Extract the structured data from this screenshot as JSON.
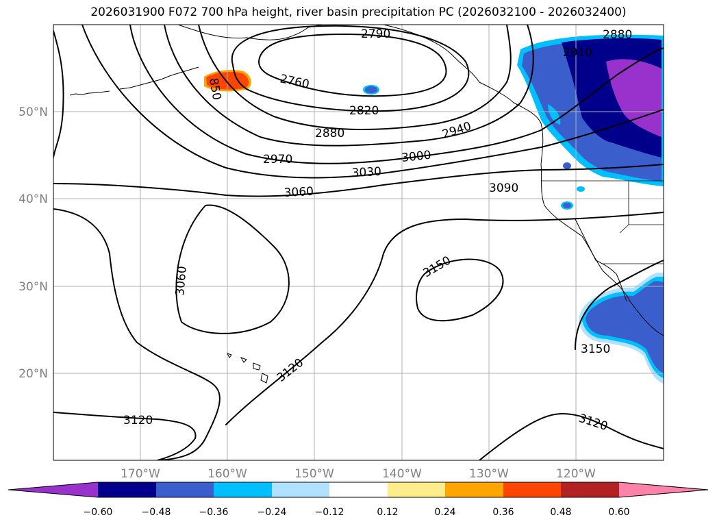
{
  "title": "2026031900 F072 700 hPa height, river basin precipitation PC (2026032100 - 2026032400)",
  "map": {
    "lon_labels": [
      "170°W",
      "160°W",
      "150°W",
      "140°W",
      "130°W",
      "120°W"
    ],
    "lat_labels": [
      "50°N",
      "40°N",
      "30°N",
      "20°N"
    ],
    "contour_labels": [
      "2790",
      "2880",
      "2910",
      "2760",
      "850",
      "2820",
      "2880",
      "2940",
      "2970",
      "3000",
      "3030",
      "3060",
      "3090",
      "3060",
      "3150",
      "3120",
      "3150",
      "3120",
      "3120"
    ]
  },
  "colorbar": {
    "ticks": [
      "−0.60",
      "−0.48",
      "−0.36",
      "−0.24",
      "−0.12",
      "0.12",
      "0.24",
      "0.36",
      "0.48",
      "0.60"
    ],
    "colors": [
      "#9932cc",
      "#00008b",
      "#3a5fcd",
      "#00bfff",
      "#b0e2ff",
      "#ffffff",
      "#ffec8b",
      "#ffa500",
      "#ff4500",
      "#b22222",
      "#ff82ab"
    ]
  }
}
